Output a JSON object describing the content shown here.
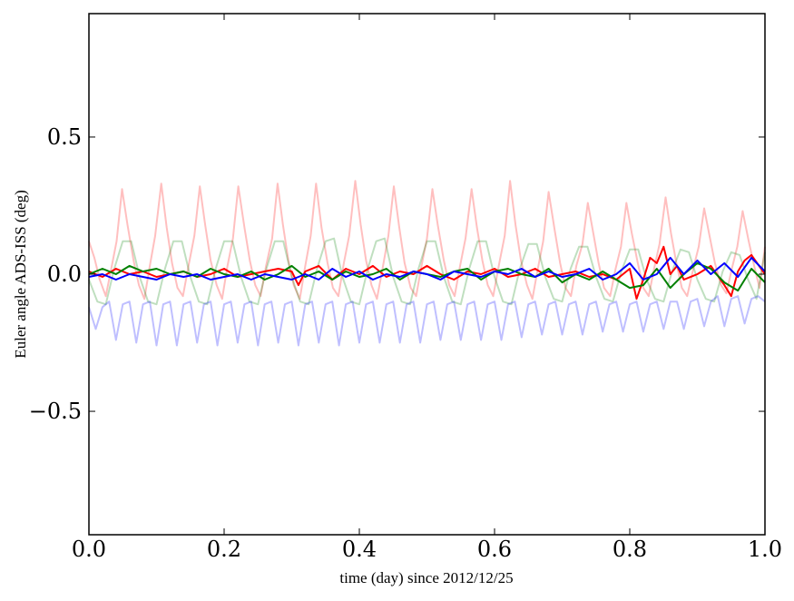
{
  "chart_data": {
    "type": "line",
    "title": "",
    "xlabel": "time (day) since 2012/12/25",
    "ylabel": "Euler angle ADS-ISS (deg)",
    "xlim": [
      0.0,
      1.0
    ],
    "ylim": [
      -0.95,
      0.95
    ],
    "grid": false,
    "legend": "none",
    "x_ticks": [
      0.0,
      0.2,
      0.4,
      0.6,
      0.8,
      1.0
    ],
    "x_tick_labels": [
      "0.0",
      "0.2",
      "0.4",
      "0.6",
      "0.8",
      "1.0"
    ],
    "y_ticks": [
      -0.5,
      0.0,
      0.5
    ],
    "y_tick_labels": [
      "−0.5",
      "0.0",
      "0.5"
    ],
    "series": [
      {
        "color": "#ff0000",
        "opacity": 0.25,
        "x": [
          0.0,
          0.008,
          0.016,
          0.025,
          0.033,
          0.041,
          0.049,
          0.057,
          0.066,
          0.074,
          0.082,
          0.09,
          0.098,
          0.107,
          0.115,
          0.123,
          0.131,
          0.139,
          0.148,
          0.156,
          0.164,
          0.172,
          0.18,
          0.189,
          0.197,
          0.205,
          0.213,
          0.221,
          0.23,
          0.238,
          0.246,
          0.254,
          0.262,
          0.271,
          0.279,
          0.287,
          0.295,
          0.303,
          0.312,
          0.32,
          0.328,
          0.336,
          0.344,
          0.353,
          0.361,
          0.369,
          0.377,
          0.385,
          0.394,
          0.402,
          0.41,
          0.418,
          0.426,
          0.435,
          0.443,
          0.451,
          0.459,
          0.467,
          0.476,
          0.484,
          0.492,
          0.5,
          0.508,
          0.516,
          0.525,
          0.533,
          0.541,
          0.549,
          0.557,
          0.566,
          0.574,
          0.582,
          0.59,
          0.598,
          0.607,
          0.615,
          0.623,
          0.631,
          0.639,
          0.648,
          0.656,
          0.664,
          0.672,
          0.68,
          0.689,
          0.697,
          0.705,
          0.713,
          0.721,
          0.73,
          0.738,
          0.746,
          0.754,
          0.762,
          0.771,
          0.779,
          0.787,
          0.795,
          0.803,
          0.812,
          0.82,
          0.828,
          0.836,
          0.844,
          0.853,
          0.861,
          0.869,
          0.877,
          0.885,
          0.894,
          0.902,
          0.91,
          0.918,
          0.926,
          0.935,
          0.943,
          0.951,
          0.959,
          0.967,
          0.976,
          0.984,
          0.992,
          1.0
        ],
        "y": [
          0.12,
          0.06,
          -0.02,
          -0.08,
          0.02,
          0.12,
          0.31,
          0.18,
          0.05,
          -0.04,
          -0.09,
          0.03,
          0.14,
          0.33,
          0.17,
          0.04,
          -0.05,
          -0.08,
          0.04,
          0.14,
          0.32,
          0.18,
          0.05,
          -0.04,
          -0.09,
          0.03,
          0.13,
          0.32,
          0.17,
          0.05,
          -0.04,
          -0.08,
          0.03,
          0.13,
          0.33,
          0.18,
          0.05,
          -0.04,
          -0.09,
          0.03,
          0.14,
          0.33,
          0.17,
          0.04,
          -0.05,
          -0.08,
          0.04,
          0.14,
          0.34,
          0.18,
          0.05,
          -0.04,
          -0.09,
          0.03,
          0.14,
          0.32,
          0.17,
          0.04,
          -0.05,
          -0.08,
          0.03,
          0.13,
          0.31,
          0.18,
          0.05,
          -0.04,
          -0.08,
          0.03,
          0.13,
          0.31,
          0.17,
          0.05,
          -0.04,
          -0.08,
          0.04,
          0.14,
          0.34,
          0.18,
          0.05,
          -0.04,
          -0.09,
          0.02,
          0.12,
          0.3,
          0.16,
          0.04,
          -0.05,
          -0.08,
          0.03,
          0.11,
          0.26,
          0.15,
          0.04,
          -0.05,
          -0.08,
          0.02,
          0.1,
          0.26,
          0.15,
          0.04,
          -0.05,
          -0.08,
          0.02,
          0.11,
          0.28,
          0.15,
          0.04,
          -0.05,
          -0.08,
          0.02,
          0.1,
          0.24,
          0.14,
          0.04,
          -0.04,
          -0.07,
          0.02,
          0.1,
          0.23,
          0.12,
          0.03,
          -0.05,
          0.1
        ]
      },
      {
        "color": "#008000",
        "opacity": 0.25,
        "x": [
          0.0,
          0.0125,
          0.025,
          0.0375,
          0.05,
          0.0625,
          0.075,
          0.0875,
          0.1,
          0.1125,
          0.125,
          0.1375,
          0.15,
          0.1625,
          0.175,
          0.1875,
          0.2,
          0.2125,
          0.225,
          0.2375,
          0.25,
          0.2625,
          0.275,
          0.2875,
          0.3,
          0.3125,
          0.325,
          0.3375,
          0.35,
          0.3625,
          0.375,
          0.3875,
          0.4,
          0.4125,
          0.425,
          0.4375,
          0.45,
          0.4625,
          0.475,
          0.4875,
          0.5,
          0.5125,
          0.525,
          0.5375,
          0.55,
          0.5625,
          0.575,
          0.5875,
          0.6,
          0.6125,
          0.625,
          0.6375,
          0.65,
          0.6625,
          0.675,
          0.6875,
          0.7,
          0.7125,
          0.725,
          0.7375,
          0.75,
          0.7625,
          0.775,
          0.7875,
          0.8,
          0.8125,
          0.825,
          0.8375,
          0.85,
          0.8625,
          0.875,
          0.8875,
          0.9,
          0.9125,
          0.925,
          0.9375,
          0.95,
          0.9625,
          0.975,
          0.9875,
          1.0
        ],
        "y": [
          -0.02,
          -0.1,
          -0.11,
          0.02,
          0.12,
          0.12,
          -0.01,
          -0.1,
          -0.11,
          0.02,
          0.12,
          0.12,
          -0.01,
          -0.1,
          -0.11,
          0.02,
          0.12,
          0.12,
          -0.01,
          -0.1,
          -0.11,
          0.02,
          0.12,
          0.12,
          -0.01,
          -0.1,
          -0.11,
          0.02,
          0.12,
          0.13,
          -0.01,
          -0.1,
          -0.11,
          0.02,
          0.12,
          0.13,
          -0.01,
          -0.1,
          -0.11,
          0.02,
          0.12,
          0.12,
          -0.01,
          -0.1,
          -0.11,
          0.02,
          0.12,
          0.12,
          -0.01,
          -0.1,
          -0.11,
          0.02,
          0.11,
          0.11,
          -0.01,
          -0.09,
          -0.1,
          0.02,
          0.1,
          0.1,
          -0.01,
          -0.09,
          -0.1,
          0.01,
          0.09,
          0.09,
          -0.02,
          -0.09,
          -0.1,
          0.01,
          0.09,
          0.08,
          -0.02,
          -0.09,
          -0.1,
          0.01,
          0.08,
          0.07,
          -0.02,
          -0.09,
          0.08
        ]
      },
      {
        "color": "#0000ff",
        "opacity": 0.25,
        "x": [
          0.0,
          0.01,
          0.02,
          0.03,
          0.04,
          0.05,
          0.06,
          0.07,
          0.08,
          0.09,
          0.1,
          0.11,
          0.12,
          0.13,
          0.14,
          0.15,
          0.16,
          0.17,
          0.18,
          0.19,
          0.2,
          0.21,
          0.22,
          0.23,
          0.24,
          0.25,
          0.26,
          0.27,
          0.28,
          0.29,
          0.3,
          0.31,
          0.32,
          0.33,
          0.34,
          0.35,
          0.36,
          0.37,
          0.38,
          0.39,
          0.4,
          0.41,
          0.42,
          0.43,
          0.44,
          0.45,
          0.46,
          0.47,
          0.48,
          0.49,
          0.5,
          0.51,
          0.52,
          0.53,
          0.54,
          0.55,
          0.56,
          0.57,
          0.58,
          0.59,
          0.6,
          0.61,
          0.62,
          0.63,
          0.64,
          0.65,
          0.66,
          0.67,
          0.68,
          0.69,
          0.7,
          0.71,
          0.72,
          0.73,
          0.74,
          0.75,
          0.76,
          0.77,
          0.78,
          0.79,
          0.8,
          0.81,
          0.82,
          0.83,
          0.84,
          0.85,
          0.86,
          0.87,
          0.88,
          0.89,
          0.9,
          0.91,
          0.92,
          0.93,
          0.94,
          0.95,
          0.96,
          0.97,
          0.98,
          0.99,
          1.0
        ],
        "y": [
          -0.12,
          -0.2,
          -0.12,
          -0.1,
          -0.24,
          -0.11,
          -0.1,
          -0.25,
          -0.11,
          -0.1,
          -0.26,
          -0.11,
          -0.1,
          -0.26,
          -0.11,
          -0.1,
          -0.25,
          -0.11,
          -0.1,
          -0.26,
          -0.11,
          -0.1,
          -0.25,
          -0.11,
          -0.1,
          -0.26,
          -0.11,
          -0.1,
          -0.25,
          -0.11,
          -0.1,
          -0.26,
          -0.11,
          -0.1,
          -0.25,
          -0.11,
          -0.1,
          -0.26,
          -0.11,
          -0.1,
          -0.25,
          -0.11,
          -0.1,
          -0.25,
          -0.11,
          -0.1,
          -0.25,
          -0.11,
          -0.1,
          -0.25,
          -0.11,
          -0.1,
          -0.24,
          -0.11,
          -0.1,
          -0.24,
          -0.11,
          -0.1,
          -0.24,
          -0.11,
          -0.1,
          -0.24,
          -0.11,
          -0.1,
          -0.23,
          -0.11,
          -0.1,
          -0.22,
          -0.11,
          -0.1,
          -0.22,
          -0.11,
          -0.1,
          -0.22,
          -0.11,
          -0.1,
          -0.21,
          -0.11,
          -0.1,
          -0.21,
          -0.11,
          -0.1,
          -0.21,
          -0.11,
          -0.1,
          -0.2,
          -0.1,
          -0.1,
          -0.2,
          -0.1,
          -0.09,
          -0.19,
          -0.1,
          -0.08,
          -0.19,
          -0.09,
          -0.08,
          -0.18,
          -0.09,
          -0.08,
          -0.1
        ]
      },
      {
        "color": "#ff0000",
        "opacity": 1,
        "x": [
          0.0,
          0.02,
          0.04,
          0.06,
          0.08,
          0.1,
          0.12,
          0.14,
          0.16,
          0.18,
          0.2,
          0.22,
          0.24,
          0.26,
          0.28,
          0.3,
          0.31,
          0.32,
          0.34,
          0.36,
          0.38,
          0.4,
          0.42,
          0.44,
          0.46,
          0.48,
          0.5,
          0.52,
          0.54,
          0.56,
          0.58,
          0.6,
          0.62,
          0.64,
          0.66,
          0.68,
          0.7,
          0.72,
          0.74,
          0.76,
          0.78,
          0.8,
          0.81,
          0.82,
          0.83,
          0.84,
          0.85,
          0.86,
          0.87,
          0.88,
          0.9,
          0.92,
          0.94,
          0.95,
          0.96,
          0.97,
          0.98,
          1.0
        ],
        "y": [
          0.01,
          -0.01,
          0.02,
          0.0,
          0.01,
          -0.01,
          0.0,
          0.01,
          -0.01,
          0.0,
          0.02,
          -0.01,
          0.0,
          0.01,
          0.02,
          0.01,
          -0.04,
          0.01,
          0.03,
          -0.02,
          0.02,
          0.0,
          0.03,
          -0.01,
          0.01,
          0.0,
          0.03,
          0.0,
          -0.02,
          0.01,
          0.0,
          0.02,
          -0.01,
          0.0,
          0.02,
          -0.01,
          0.0,
          0.01,
          -0.01,
          0.0,
          -0.02,
          0.02,
          -0.09,
          -0.02,
          0.06,
          0.04,
          0.1,
          0.0,
          0.03,
          -0.02,
          0.0,
          0.03,
          -0.04,
          -0.08,
          0.01,
          0.05,
          0.07,
          0.0
        ]
      },
      {
        "color": "#008000",
        "opacity": 1,
        "x": [
          0.0,
          0.02,
          0.04,
          0.06,
          0.08,
          0.1,
          0.12,
          0.14,
          0.16,
          0.18,
          0.2,
          0.22,
          0.24,
          0.26,
          0.28,
          0.3,
          0.32,
          0.34,
          0.36,
          0.38,
          0.4,
          0.42,
          0.44,
          0.46,
          0.48,
          0.5,
          0.52,
          0.54,
          0.56,
          0.58,
          0.6,
          0.62,
          0.64,
          0.66,
          0.68,
          0.7,
          0.72,
          0.74,
          0.76,
          0.78,
          0.8,
          0.82,
          0.84,
          0.86,
          0.88,
          0.9,
          0.92,
          0.94,
          0.96,
          0.98,
          1.0
        ],
        "y": [
          0.0,
          0.02,
          0.0,
          0.03,
          0.01,
          0.02,
          0.0,
          0.01,
          -0.01,
          0.02,
          0.0,
          -0.01,
          0.01,
          -0.02,
          0.0,
          0.03,
          -0.01,
          0.01,
          -0.02,
          0.01,
          -0.01,
          0.0,
          0.02,
          -0.02,
          0.01,
          0.0,
          -0.01,
          0.01,
          0.02,
          -0.02,
          0.01,
          0.02,
          0.0,
          -0.01,
          0.02,
          -0.03,
          0.0,
          -0.02,
          0.01,
          -0.02,
          -0.05,
          -0.04,
          0.02,
          -0.05,
          0.0,
          0.04,
          0.02,
          -0.03,
          -0.06,
          0.02,
          -0.03
        ]
      },
      {
        "color": "#0000ff",
        "opacity": 1,
        "x": [
          0.0,
          0.02,
          0.04,
          0.06,
          0.08,
          0.1,
          0.12,
          0.14,
          0.16,
          0.18,
          0.2,
          0.22,
          0.24,
          0.26,
          0.28,
          0.3,
          0.32,
          0.34,
          0.36,
          0.38,
          0.4,
          0.42,
          0.44,
          0.46,
          0.48,
          0.5,
          0.52,
          0.54,
          0.56,
          0.58,
          0.6,
          0.62,
          0.64,
          0.66,
          0.68,
          0.7,
          0.72,
          0.74,
          0.76,
          0.78,
          0.8,
          0.82,
          0.84,
          0.86,
          0.88,
          0.9,
          0.92,
          0.94,
          0.96,
          0.98,
          1.0
        ],
        "y": [
          -0.01,
          0.0,
          -0.02,
          0.0,
          -0.01,
          -0.02,
          0.0,
          -0.01,
          0.0,
          -0.02,
          -0.01,
          0.0,
          -0.02,
          0.0,
          -0.01,
          -0.02,
          0.0,
          -0.02,
          0.02,
          -0.01,
          0.01,
          -0.02,
          0.0,
          -0.01,
          0.01,
          0.0,
          -0.02,
          0.01,
          0.0,
          -0.01,
          0.01,
          0.0,
          0.02,
          -0.01,
          0.01,
          -0.01,
          0.0,
          0.02,
          -0.02,
          0.0,
          0.04,
          -0.02,
          0.0,
          0.06,
          0.0,
          0.05,
          0.0,
          0.04,
          -0.01,
          0.06,
          0.01
        ]
      }
    ]
  }
}
